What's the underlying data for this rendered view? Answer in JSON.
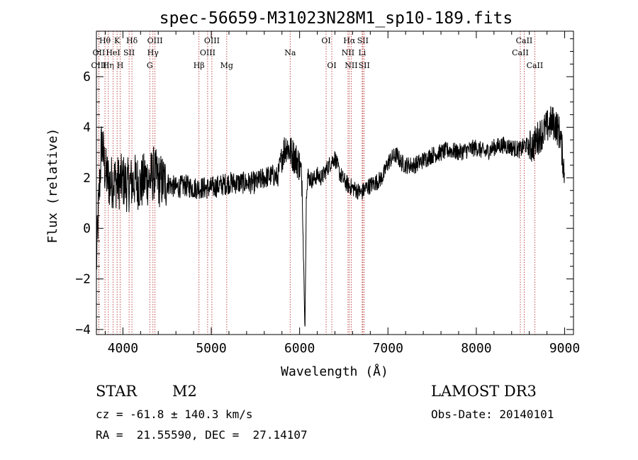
{
  "chart_data": {
    "type": "line",
    "title": "spec-56659-M31023N28M1_sp10-189.fits",
    "xlabel": "Wavelength (Å)",
    "ylabel": "Flux (relative)",
    "xlim": [
      3700,
      9100
    ],
    "ylim": [
      -4.2,
      7.8
    ],
    "xticks": [
      4000,
      5000,
      6000,
      7000,
      8000,
      9000
    ],
    "yticks": [
      -4,
      -2,
      0,
      2,
      4,
      6
    ],
    "spectrum_anchors": {
      "x": [
        3700,
        3720,
        3740,
        3760,
        3800,
        3850,
        3900,
        3950,
        4000,
        4050,
        4100,
        4150,
        4200,
        4250,
        4300,
        4350,
        4400,
        4500,
        4600,
        4700,
        4800,
        4900,
        5000,
        5100,
        5200,
        5300,
        5400,
        5500,
        5600,
        5700,
        5750,
        5800,
        5850,
        5900,
        5950,
        6000,
        6030,
        6060,
        6080,
        6100,
        6150,
        6200,
        6250,
        6300,
        6350,
        6400,
        6450,
        6500,
        6550,
        6600,
        6650,
        6700,
        6750,
        6800,
        6850,
        6900,
        6950,
        7000,
        7050,
        7100,
        7150,
        7200,
        7300,
        7400,
        7500,
        7600,
        7700,
        7800,
        7900,
        8000,
        8100,
        8200,
        8300,
        8400,
        8500,
        8550,
        8600,
        8650,
        8700,
        8750,
        8800,
        8850,
        8900,
        8950,
        9000
      ],
      "y": [
        -1.5,
        0.5,
        2.0,
        3.5,
        2.2,
        1.8,
        1.9,
        1.8,
        1.9,
        1.7,
        1.8,
        1.9,
        1.7,
        2.0,
        1.9,
        2.2,
        1.9,
        1.8,
        1.6,
        1.7,
        1.6,
        1.6,
        1.6,
        1.7,
        1.8,
        1.8,
        1.8,
        1.8,
        2.0,
        2.1,
        2.0,
        2.9,
        3.3,
        3.0,
        2.8,
        2.5,
        1.8,
        -4.2,
        2.2,
        2.0,
        1.9,
        2.1,
        2.0,
        2.3,
        2.6,
        2.8,
        2.2,
        1.9,
        1.7,
        1.6,
        1.5,
        1.4,
        1.6,
        1.7,
        1.8,
        1.9,
        2.1,
        2.6,
        2.8,
        2.9,
        2.6,
        2.5,
        2.5,
        2.7,
        2.9,
        3.0,
        3.1,
        3.0,
        3.1,
        3.2,
        3.0,
        3.2,
        3.3,
        3.2,
        3.1,
        3.3,
        3.2,
        3.3,
        3.6,
        3.8,
        4.0,
        4.2,
        4.1,
        3.7,
        2.1
      ]
    },
    "lines": [
      {
        "label": "Hθ",
        "x": 3797,
        "row": 0
      },
      {
        "label": "OII",
        "x": 3727,
        "row": 1
      },
      {
        "label": "OIII",
        "x": 3727,
        "row": 2
      },
      {
        "label": "Hη",
        "x": 3835,
        "row": 2
      },
      {
        "label": "HeI",
        "x": 3889,
        "row": 1
      },
      {
        "label": "K",
        "x": 3934,
        "row": 0
      },
      {
        "label": "H",
        "x": 3969,
        "row": 2
      },
      {
        "label": "SII",
        "x": 4070,
        "row": 1
      },
      {
        "label": "Hδ",
        "x": 4102,
        "row": 0
      },
      {
        "label": "G",
        "x": 4304,
        "row": 2
      },
      {
        "label": "OIII",
        "x": 4363,
        "row": 0
      },
      {
        "label": "Hγ",
        "x": 4340,
        "row": 1
      },
      {
        "label": "Hβ",
        "x": 4861,
        "row": 2
      },
      {
        "label": "OIII",
        "x": 5007,
        "row": 0
      },
      {
        "label": "OIII",
        "x": 4959,
        "row": 1
      },
      {
        "label": "Mg",
        "x": 5175,
        "row": 2
      },
      {
        "label": "Na",
        "x": 5893,
        "row": 1
      },
      {
        "label": "OI",
        "x": 6300,
        "row": 0
      },
      {
        "label": "OI",
        "x": 6364,
        "row": 2
      },
      {
        "label": "Hα",
        "x": 6563,
        "row": 0
      },
      {
        "label": "NII",
        "x": 6548,
        "row": 1
      },
      {
        "label": "NII",
        "x": 6584,
        "row": 2
      },
      {
        "label": "SII",
        "x": 6716,
        "row": 0
      },
      {
        "label": "Li",
        "x": 6708,
        "row": 1
      },
      {
        "label": "SII",
        "x": 6731,
        "row": 2
      },
      {
        "label": "CaII",
        "x": 8542,
        "row": 0
      },
      {
        "label": "CaII",
        "x": 8498,
        "row": 1
      },
      {
        "label": "CaII",
        "x": 8662,
        "row": 2
      }
    ]
  },
  "info": {
    "class": "STAR",
    "subclass": "M2",
    "survey": "LAMOST DR3",
    "cz": "cz = -61.8 ± 140.3 km/s",
    "obsdate": "Obs-Date: 20140101",
    "radec": "RA =  21.55590, DEC =  27.14107"
  }
}
